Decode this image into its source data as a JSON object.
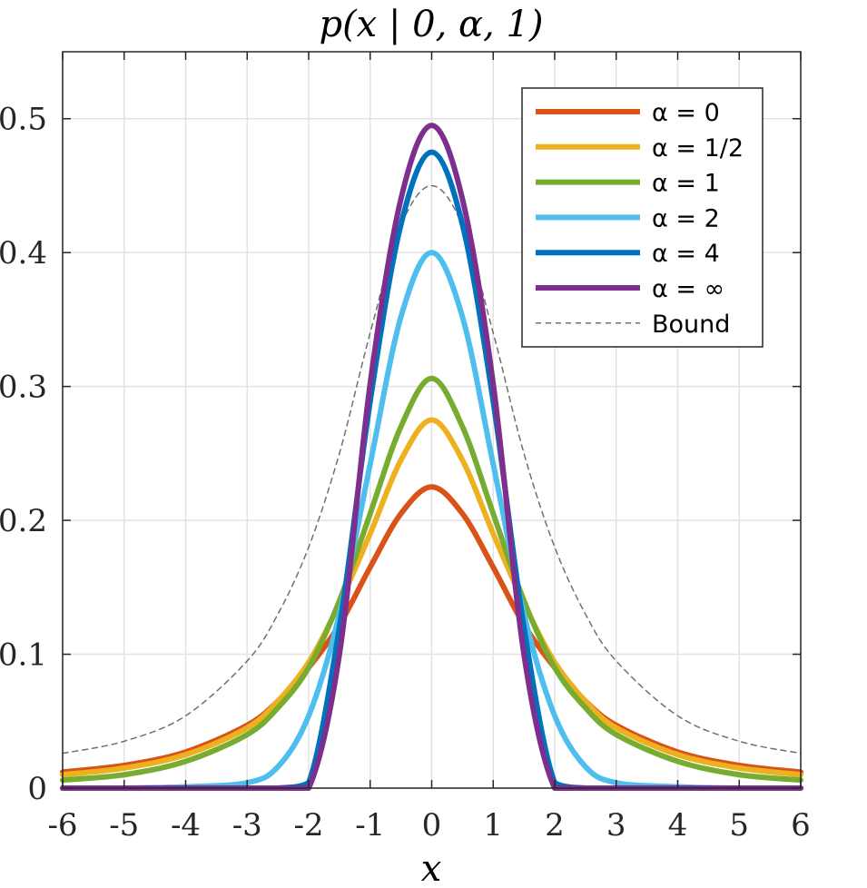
{
  "chart_data": {
    "type": "line",
    "title": "p(x | 0, α, 1)",
    "xlabel": "x",
    "ylabel": "",
    "xlim": [
      -6,
      6
    ],
    "ylim": [
      0,
      0.55
    ],
    "xticks": [
      -6,
      -5,
      -4,
      -3,
      -2,
      -1,
      0,
      1,
      2,
      3,
      4,
      5,
      6
    ],
    "yticks": [
      0,
      0.1,
      0.2,
      0.3,
      0.4,
      0.5
    ],
    "xtick_labels": [
      "-6",
      "-5",
      "-4",
      "-3",
      "-2",
      "-1",
      "0",
      "1",
      "2",
      "3",
      "4",
      "5",
      "6"
    ],
    "ytick_labels": [
      "0",
      "0.1",
      "0.2",
      "0.3",
      "0.4",
      "0.5"
    ],
    "grid": true,
    "legend_position": "top-right",
    "x": [
      -6,
      -5,
      -4,
      -3,
      -2.5,
      -2,
      -1.5,
      -1,
      -0.5,
      0,
      0.5,
      1,
      1.5,
      2,
      2.5,
      3,
      4,
      5,
      6
    ],
    "series": [
      {
        "name": "α = 0",
        "color": "#D95319",
        "style": "solid",
        "values": [
          0.012,
          0.017,
          0.027,
          0.047,
          0.065,
          0.09,
          0.122,
          0.165,
          0.205,
          0.225,
          0.205,
          0.165,
          0.122,
          0.09,
          0.065,
          0.047,
          0.027,
          0.017,
          0.012
        ]
      },
      {
        "name": "α = 1/2",
        "color": "#EDB120",
        "style": "solid",
        "values": [
          0.01,
          0.015,
          0.025,
          0.045,
          0.065,
          0.094,
          0.138,
          0.19,
          0.245,
          0.275,
          0.245,
          0.19,
          0.138,
          0.094,
          0.065,
          0.045,
          0.025,
          0.015,
          0.01
        ]
      },
      {
        "name": "α = 1",
        "color": "#77AC30",
        "style": "solid",
        "values": [
          0.006,
          0.01,
          0.02,
          0.04,
          0.06,
          0.09,
          0.14,
          0.205,
          0.27,
          0.306,
          0.27,
          0.205,
          0.14,
          0.09,
          0.06,
          0.04,
          0.02,
          0.01,
          0.006
        ]
      },
      {
        "name": "α = 2",
        "color": "#4DBEEE",
        "style": "solid",
        "values": [
          0.0,
          0.0,
          0.001,
          0.004,
          0.016,
          0.054,
          0.13,
          0.242,
          0.352,
          0.4,
          0.352,
          0.242,
          0.13,
          0.054,
          0.016,
          0.004,
          0.001,
          0.0,
          0.0
        ]
      },
      {
        "name": "α = 4",
        "color": "#0072BD",
        "style": "solid",
        "values": [
          0,
          0,
          0,
          0,
          0,
          0.004,
          0.12,
          0.289,
          0.421,
          0.475,
          0.421,
          0.289,
          0.12,
          0.004,
          0,
          0,
          0,
          0,
          0
        ]
      },
      {
        "name": "α = ∞",
        "color": "#7E2F8E",
        "style": "solid",
        "values": [
          0,
          0,
          0,
          0,
          0,
          0,
          0.1,
          0.302,
          0.44,
          0.495,
          0.44,
          0.302,
          0.1,
          0,
          0,
          0,
          0,
          0,
          0
        ]
      },
      {
        "name": "Bound",
        "color": "#707070",
        "style": "dashed",
        "values": [
          0.026,
          0.035,
          0.054,
          0.095,
          0.13,
          0.18,
          0.25,
          0.34,
          0.42,
          0.45,
          0.42,
          0.34,
          0.25,
          0.18,
          0.13,
          0.095,
          0.054,
          0.035,
          0.026
        ]
      }
    ]
  }
}
